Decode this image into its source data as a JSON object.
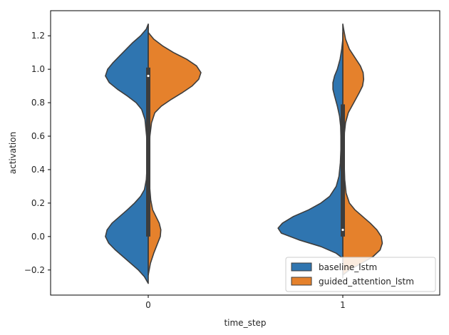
{
  "chart_data": {
    "type": "violin",
    "split": true,
    "title": "",
    "xlabel": "time_step",
    "ylabel": "activation",
    "categories": [
      "0",
      "1"
    ],
    "ylim": [
      -0.35,
      1.35
    ],
    "yticks": [
      -0.2,
      0.0,
      0.2,
      0.4,
      0.6,
      0.8,
      1.0,
      1.2
    ],
    "ytick_labels": [
      "−0.2",
      "0.0",
      "0.2",
      "0.4",
      "0.6",
      "0.8",
      "1.0",
      "1.2"
    ],
    "grid": false,
    "legend": {
      "position": "lower-right"
    },
    "series": [
      {
        "name": "baseline_lstm",
        "color": "#2f75b0",
        "side": "left",
        "violins": [
          {
            "category": "0",
            "range": [
              -0.28,
              1.27
            ],
            "profile": [
              [
                -0.28,
                0.0
              ],
              [
                -0.24,
                0.07
              ],
              [
                -0.2,
                0.18
              ],
              [
                -0.16,
                0.32
              ],
              [
                -0.12,
                0.46
              ],
              [
                -0.08,
                0.6
              ],
              [
                -0.04,
                0.72
              ],
              [
                0.0,
                0.78
              ],
              [
                0.04,
                0.75
              ],
              [
                0.08,
                0.66
              ],
              [
                0.12,
                0.52
              ],
              [
                0.16,
                0.38
              ],
              [
                0.2,
                0.25
              ],
              [
                0.24,
                0.14
              ],
              [
                0.28,
                0.07
              ],
              [
                0.34,
                0.035
              ],
              [
                0.4,
                0.025
              ],
              [
                0.5,
                0.02
              ],
              [
                0.6,
                0.03
              ],
              [
                0.7,
                0.06
              ],
              [
                0.76,
                0.12
              ],
              [
                0.8,
                0.22
              ],
              [
                0.84,
                0.38
              ],
              [
                0.88,
                0.56
              ],
              [
                0.92,
                0.71
              ],
              [
                0.96,
                0.78
              ],
              [
                1.0,
                0.74
              ],
              [
                1.04,
                0.64
              ],
              [
                1.08,
                0.52
              ],
              [
                1.12,
                0.4
              ],
              [
                1.16,
                0.28
              ],
              [
                1.2,
                0.14
              ],
              [
                1.24,
                0.035
              ],
              [
                1.27,
                0.0
              ]
            ]
          },
          {
            "category": "1",
            "range": [
              -0.13,
              1.18
            ],
            "profile": [
              [
                -0.13,
                0.0
              ],
              [
                -0.1,
                0.12
              ],
              [
                -0.06,
                0.4
              ],
              [
                -0.02,
                0.8
              ],
              [
                0.02,
                1.12
              ],
              [
                0.05,
                1.18
              ],
              [
                0.08,
                1.1
              ],
              [
                0.12,
                0.9
              ],
              [
                0.16,
                0.62
              ],
              [
                0.2,
                0.4
              ],
              [
                0.24,
                0.24
              ],
              [
                0.3,
                0.12
              ],
              [
                0.36,
                0.07
              ],
              [
                0.44,
                0.045
              ],
              [
                0.52,
                0.035
              ],
              [
                0.6,
                0.035
              ],
              [
                0.66,
                0.04
              ],
              [
                0.72,
                0.06
              ],
              [
                0.78,
                0.1
              ],
              [
                0.84,
                0.15
              ],
              [
                0.88,
                0.18
              ],
              [
                0.92,
                0.18
              ],
              [
                0.96,
                0.15
              ],
              [
                1.0,
                0.1
              ],
              [
                1.06,
                0.05
              ],
              [
                1.12,
                0.02
              ],
              [
                1.18,
                0.0
              ]
            ]
          }
        ]
      },
      {
        "name": "guided_attention_lstm",
        "color": "#e5812c",
        "side": "right",
        "violins": [
          {
            "category": "0",
            "range": [
              -0.23,
              1.22
            ],
            "profile": [
              [
                -0.23,
                0.0
              ],
              [
                -0.16,
                0.04
              ],
              [
                -0.1,
                0.1
              ],
              [
                -0.05,
                0.16
              ],
              [
                0.0,
                0.22
              ],
              [
                0.04,
                0.23
              ],
              [
                0.08,
                0.2
              ],
              [
                0.12,
                0.14
              ],
              [
                0.16,
                0.08
              ],
              [
                0.22,
                0.045
              ],
              [
                0.3,
                0.025
              ],
              [
                0.4,
                0.02
              ],
              [
                0.5,
                0.02
              ],
              [
                0.6,
                0.03
              ],
              [
                0.68,
                0.06
              ],
              [
                0.74,
                0.12
              ],
              [
                0.78,
                0.24
              ],
              [
                0.82,
                0.42
              ],
              [
                0.86,
                0.62
              ],
              [
                0.9,
                0.8
              ],
              [
                0.94,
                0.92
              ],
              [
                0.98,
                0.96
              ],
              [
                1.02,
                0.88
              ],
              [
                1.06,
                0.7
              ],
              [
                1.1,
                0.46
              ],
              [
                1.14,
                0.26
              ],
              [
                1.18,
                0.1
              ],
              [
                1.22,
                0.0
              ]
            ]
          },
          {
            "category": "1",
            "range": [
              -0.23,
              1.27
            ],
            "profile": [
              [
                -0.23,
                0.0
              ],
              [
                -0.2,
                0.12
              ],
              [
                -0.16,
                0.34
              ],
              [
                -0.12,
                0.55
              ],
              [
                -0.08,
                0.68
              ],
              [
                -0.04,
                0.72
              ],
              [
                0.0,
                0.7
              ],
              [
                0.04,
                0.62
              ],
              [
                0.08,
                0.5
              ],
              [
                0.12,
                0.36
              ],
              [
                0.16,
                0.22
              ],
              [
                0.2,
                0.12
              ],
              [
                0.26,
                0.06
              ],
              [
                0.34,
                0.035
              ],
              [
                0.44,
                0.025
              ],
              [
                0.54,
                0.025
              ],
              [
                0.62,
                0.03
              ],
              [
                0.68,
                0.05
              ],
              [
                0.74,
                0.1
              ],
              [
                0.8,
                0.2
              ],
              [
                0.86,
                0.3
              ],
              [
                0.9,
                0.36
              ],
              [
                0.94,
                0.38
              ],
              [
                0.98,
                0.37
              ],
              [
                1.02,
                0.32
              ],
              [
                1.06,
                0.24
              ],
              [
                1.12,
                0.12
              ],
              [
                1.18,
                0.05
              ],
              [
                1.24,
                0.015
              ],
              [
                1.27,
                0.0
              ]
            ]
          }
        ]
      }
    ],
    "inner_box": [
      {
        "category": "0",
        "q1": 0.0,
        "median": 0.96,
        "q3": 1.01,
        "whisker_low": -0.23,
        "whisker_high": 1.27
      },
      {
        "category": "1",
        "q1": 0.0,
        "median": 0.04,
        "q3": 0.79,
        "whisker_low": -0.25,
        "whisker_high": 1.22
      }
    ]
  }
}
